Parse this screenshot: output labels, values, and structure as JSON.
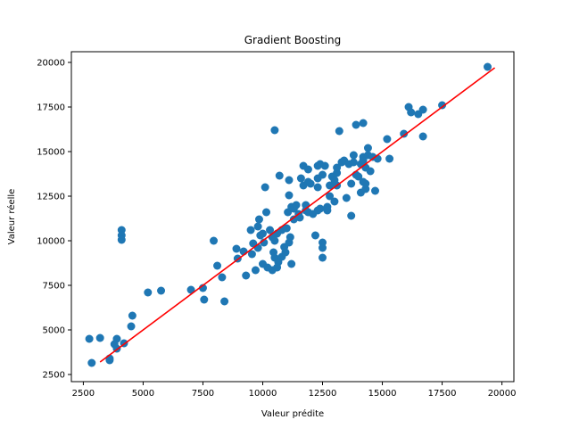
{
  "chart_data": {
    "type": "scatter",
    "title": "Gradient Boosting",
    "xlabel": "Valeur prédite",
    "ylabel": "Valeur réelle",
    "xlim": [
      2000,
      20500
    ],
    "ylim": [
      2100,
      20600
    ],
    "xticks": [
      2500,
      5000,
      7500,
      10000,
      12500,
      15000,
      17500,
      20000
    ],
    "yticks": [
      2500,
      5000,
      7500,
      10000,
      12500,
      15000,
      17500,
      20000
    ],
    "xtick_labels": [
      "2500",
      "5000",
      "7500",
      "10000",
      "12500",
      "15000",
      "17500",
      "20000"
    ],
    "ytick_labels": [
      "2500",
      "5000",
      "7500",
      "10000",
      "12500",
      "15000",
      "17500",
      "20000"
    ],
    "grid": false,
    "colors": {
      "points": "#1f77b4",
      "line": "#ff0000"
    },
    "reference_line": {
      "x": [
        3200,
        19700
      ],
      "y": [
        3200,
        19700
      ]
    },
    "series": [
      {
        "points": [
          [
            2750,
            4500
          ],
          [
            2850,
            3150
          ],
          [
            3200,
            4550
          ],
          [
            3600,
            3300
          ],
          [
            3600,
            3400
          ],
          [
            3800,
            4200
          ],
          [
            3900,
            4500
          ],
          [
            3900,
            3950
          ],
          [
            4200,
            4250
          ],
          [
            4100,
            10600
          ],
          [
            4100,
            10300
          ],
          [
            4100,
            10050
          ],
          [
            4500,
            5200
          ],
          [
            4550,
            5800
          ],
          [
            5200,
            7100
          ],
          [
            5750,
            7200
          ],
          [
            7000,
            7250
          ],
          [
            7500,
            7350
          ],
          [
            7550,
            6700
          ],
          [
            7950,
            10000
          ],
          [
            8100,
            8600
          ],
          [
            8400,
            6600
          ],
          [
            8300,
            7950
          ],
          [
            8900,
            9550
          ],
          [
            8950,
            9000
          ],
          [
            9200,
            9400
          ],
          [
            9300,
            8050
          ],
          [
            9550,
            9250
          ],
          [
            9500,
            10600
          ],
          [
            9700,
            8350
          ],
          [
            9600,
            9850
          ],
          [
            9800,
            9600
          ],
          [
            9800,
            10800
          ],
          [
            9850,
            11200
          ],
          [
            9900,
            10300
          ],
          [
            10000,
            10400
          ],
          [
            10000,
            8700
          ],
          [
            10050,
            9900
          ],
          [
            10150,
            11600
          ],
          [
            10200,
            8500
          ],
          [
            10100,
            13000
          ],
          [
            10400,
            10200
          ],
          [
            10400,
            8350
          ],
          [
            10300,
            10600
          ],
          [
            10450,
            9350
          ],
          [
            10500,
            9050
          ],
          [
            10500,
            10000
          ],
          [
            10500,
            16200
          ],
          [
            10600,
            10400
          ],
          [
            10650,
            8800
          ],
          [
            10600,
            8500
          ],
          [
            10700,
            13650
          ],
          [
            10800,
            10600
          ],
          [
            10800,
            9100
          ],
          [
            10900,
            9650
          ],
          [
            10950,
            9350
          ],
          [
            11000,
            10700
          ],
          [
            11050,
            11600
          ],
          [
            11100,
            13400
          ],
          [
            11100,
            12550
          ],
          [
            11100,
            9900
          ],
          [
            11150,
            10200
          ],
          [
            11200,
            8700
          ],
          [
            11200,
            11900
          ],
          [
            11300,
            11200
          ],
          [
            11300,
            11800
          ],
          [
            11400,
            12000
          ],
          [
            11500,
            11500
          ],
          [
            11550,
            11300
          ],
          [
            11600,
            13500
          ],
          [
            11700,
            14200
          ],
          [
            11700,
            13100
          ],
          [
            11800,
            12000
          ],
          [
            11800,
            11700
          ],
          [
            11900,
            13300
          ],
          [
            11900,
            14000
          ],
          [
            11900,
            11600
          ],
          [
            12000,
            13200
          ],
          [
            12100,
            11500
          ],
          [
            12200,
            10300
          ],
          [
            12300,
            11700
          ],
          [
            12300,
            13500
          ],
          [
            12300,
            14200
          ],
          [
            12300,
            13000
          ],
          [
            12400,
            14300
          ],
          [
            12400,
            11800
          ],
          [
            12500,
            9900
          ],
          [
            12500,
            9600
          ],
          [
            12500,
            9050
          ],
          [
            12500,
            13700
          ],
          [
            12600,
            14200
          ],
          [
            12700,
            11900
          ],
          [
            12700,
            11700
          ],
          [
            12800,
            12500
          ],
          [
            12800,
            13100
          ],
          [
            12900,
            13600
          ],
          [
            13000,
            13400
          ],
          [
            13000,
            12200
          ],
          [
            13100,
            14100
          ],
          [
            13100,
            13800
          ],
          [
            13100,
            13100
          ],
          [
            13200,
            16150
          ],
          [
            13300,
            14400
          ],
          [
            13400,
            14500
          ],
          [
            13500,
            12400
          ],
          [
            13600,
            14300
          ],
          [
            13700,
            11400
          ],
          [
            13700,
            13200
          ],
          [
            13800,
            14800
          ],
          [
            13800,
            14400
          ],
          [
            13900,
            13700
          ],
          [
            13900,
            16500
          ],
          [
            14000,
            13600
          ],
          [
            14100,
            12700
          ],
          [
            14100,
            14300
          ],
          [
            14200,
            16600
          ],
          [
            14200,
            14500
          ],
          [
            14200,
            14700
          ],
          [
            14200,
            13300
          ],
          [
            14300,
            12900
          ],
          [
            14300,
            13200
          ],
          [
            14300,
            14100
          ],
          [
            14400,
            14800
          ],
          [
            14400,
            15200
          ],
          [
            14500,
            13900
          ],
          [
            14600,
            14700
          ],
          [
            14700,
            12800
          ],
          [
            14800,
            14600
          ],
          [
            15200,
            15700
          ],
          [
            15300,
            14600
          ],
          [
            15900,
            16000
          ],
          [
            16100,
            17500
          ],
          [
            16200,
            17200
          ],
          [
            16500,
            17100
          ],
          [
            16700,
            17350
          ],
          [
            16700,
            15850
          ],
          [
            17500,
            17600
          ],
          [
            19400,
            19750
          ]
        ]
      }
    ]
  }
}
